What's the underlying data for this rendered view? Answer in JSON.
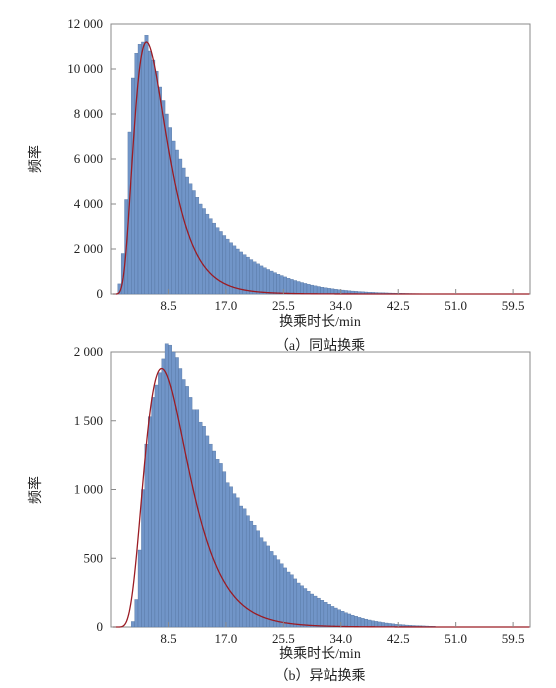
{
  "chart_data": [
    {
      "type": "bar",
      "caption": "（a）同站换乘",
      "xlabel": "换乘时长/min",
      "ylabel": "频率",
      "xlim": [
        0,
        62
      ],
      "ylim": [
        0,
        12000
      ],
      "xticks": [
        8.5,
        17.0,
        25.5,
        34.0,
        42.5,
        51.0,
        59.5
      ],
      "xtick_labels": [
        "8.5",
        "17.0",
        "25.5",
        "34.0",
        "42.5",
        "51.0",
        "59.5"
      ],
      "yticks": [
        0,
        2000,
        4000,
        6000,
        8000,
        10000,
        12000
      ],
      "ytick_labels": [
        "0",
        "2 000",
        "4 000",
        "6 000",
        "8 000",
        "10 000",
        "12 000"
      ],
      "bin_width": 0.5,
      "bins_start": 1.0,
      "values": [
        450,
        1800,
        4200,
        7200,
        9600,
        10700,
        11100,
        11200,
        11500,
        10800,
        10400,
        9900,
        9200,
        8600,
        8000,
        7400,
        6800,
        6400,
        6000,
        5600,
        5200,
        4900,
        4600,
        4300,
        4000,
        3800,
        3550,
        3350,
        3150,
        2950,
        2780,
        2600,
        2440,
        2280,
        2140,
        2000,
        1870,
        1750,
        1640,
        1530,
        1430,
        1340,
        1250,
        1170,
        1090,
        1020,
        950,
        880,
        820,
        760,
        700,
        650,
        600,
        555,
        510,
        470,
        430,
        395,
        362,
        332,
        302,
        276,
        252,
        230,
        210,
        191,
        174,
        158,
        143,
        130,
        118,
        107,
        97,
        88,
        80,
        72,
        65,
        59,
        53,
        48,
        43,
        39,
        35,
        31,
        28,
        25,
        22,
        20,
        18,
        16,
        14,
        12,
        11,
        10,
        9,
        8,
        7,
        6,
        5,
        5
      ],
      "fit_curve": {
        "type": "lognormal",
        "mu": 1.87,
        "sigma": 0.46,
        "peak": 11200,
        "color": "#9b1c24"
      },
      "bar_color": "#7195c8",
      "grid": false
    },
    {
      "type": "bar",
      "caption": "（b）异站换乘",
      "xlabel": "换乘时长/min",
      "ylabel": "频率",
      "xlim": [
        0,
        62
      ],
      "ylim": [
        0,
        2000
      ],
      "xticks": [
        8.5,
        17.0,
        25.5,
        34.0,
        42.5,
        51.0,
        59.5
      ],
      "xtick_labels": [
        "8.5",
        "17.0",
        "25.5",
        "34.0",
        "42.5",
        "51.0",
        "59.5"
      ],
      "yticks": [
        0,
        500,
        1000,
        1500,
        2000
      ],
      "ytick_labels": [
        "0",
        "500",
        "1 000",
        "1 500",
        "2 000"
      ],
      "bin_width": 0.5,
      "bins_start": 3.0,
      "values": [
        40,
        200,
        560,
        1000,
        1330,
        1530,
        1670,
        1760,
        1850,
        1950,
        2060,
        2050,
        2000,
        1960,
        1880,
        1800,
        1750,
        1670,
        1580,
        1580,
        1490,
        1460,
        1390,
        1330,
        1280,
        1220,
        1190,
        1130,
        1050,
        1020,
        970,
        940,
        880,
        860,
        810,
        770,
        740,
        700,
        650,
        620,
        590,
        550,
        520,
        490,
        460,
        430,
        400,
        380,
        350,
        320,
        300,
        280,
        260,
        240,
        225,
        210,
        195,
        180,
        165,
        150,
        138,
        126,
        115,
        104,
        95,
        86,
        78,
        70,
        63,
        57,
        51,
        46,
        41,
        37,
        33,
        29,
        26,
        23,
        20,
        18,
        16,
        14,
        12,
        11,
        10,
        9,
        8,
        7,
        6,
        5
      ],
      "fit_curve": {
        "type": "lognormal",
        "mu": 2.2,
        "sigma": 0.43,
        "peak": 1880,
        "color": "#9b1c24"
      },
      "bar_color": "#7195c8",
      "grid": false
    }
  ]
}
